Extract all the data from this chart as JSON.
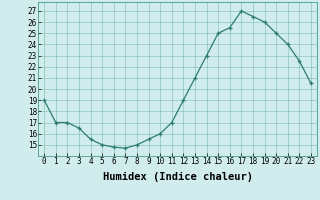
{
  "x": [
    0,
    1,
    2,
    3,
    4,
    5,
    6,
    7,
    8,
    9,
    10,
    11,
    12,
    13,
    14,
    15,
    16,
    17,
    18,
    19,
    20,
    21,
    22,
    23
  ],
  "y": [
    19,
    17,
    17,
    16.5,
    15.5,
    15,
    14.8,
    14.7,
    15,
    15.5,
    16,
    17,
    19,
    21,
    23,
    25,
    25.5,
    27,
    26.5,
    26,
    25,
    24,
    22.5,
    20.5
  ],
  "xlim": [
    -0.5,
    23.5
  ],
  "ylim": [
    14.0,
    27.8
  ],
  "yticks": [
    15,
    16,
    17,
    18,
    19,
    20,
    21,
    22,
    23,
    24,
    25,
    26,
    27
  ],
  "xticks": [
    0,
    1,
    2,
    3,
    4,
    5,
    6,
    7,
    8,
    9,
    10,
    11,
    12,
    13,
    14,
    15,
    16,
    17,
    18,
    19,
    20,
    21,
    22,
    23
  ],
  "xlabel": "Humidex (Indice chaleur)",
  "line_color": "#2e7d6e",
  "marker": "+",
  "bg_color": "#d0ecec",
  "grid_color": "#2e8b7a",
  "tick_fontsize": 5.5,
  "label_fontsize": 7.5
}
